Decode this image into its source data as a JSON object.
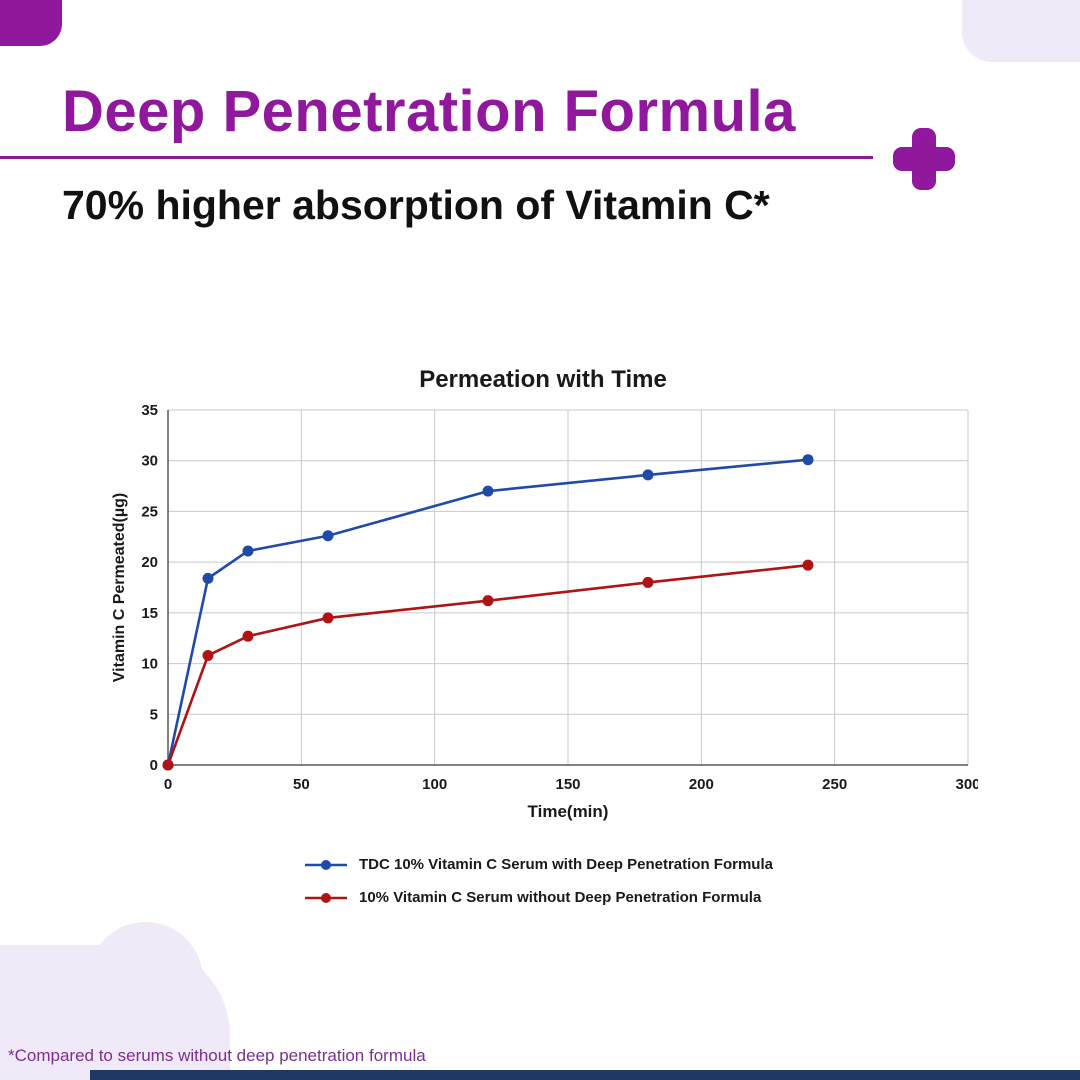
{
  "theme": {
    "purple": "#8F189C",
    "light_purple": "#F0E9F7",
    "navy_bar": "#1F3864",
    "footnote_color": "#7B2F92",
    "grid_color": "#C9C9C9",
    "axis_color": "#595959",
    "tick_color": "#1a1a1a"
  },
  "header": {
    "title": "Deep Penetration Formula",
    "subtitle": "70% higher absorption of Vitamin C*"
  },
  "footnote": "*Compared to serums without deep penetration formula",
  "chart_data": {
    "type": "line",
    "title": "Permeation with Time",
    "xlabel": "Time(min)",
    "ylabel": "Vitamin C Permeated(µg)",
    "xlim": [
      0,
      300
    ],
    "ylim": [
      0,
      35
    ],
    "xticks": [
      0,
      50,
      100,
      150,
      200,
      250,
      300
    ],
    "yticks": [
      0,
      5,
      10,
      15,
      20,
      25,
      30,
      35
    ],
    "grid": true,
    "legend_position": "bottom",
    "series": [
      {
        "name": "TDC 10% Vitamin C Serum with Deep Penetration Formula",
        "color": "#1F4AA8",
        "x": [
          0,
          15,
          30,
          60,
          120,
          180,
          240
        ],
        "y": [
          0,
          18.4,
          21.1,
          22.6,
          27.0,
          28.6,
          30.1
        ]
      },
      {
        "name": "10% Vitamin C Serum without Deep Penetration Formula",
        "color": "#B01313",
        "x": [
          0,
          15,
          30,
          60,
          120,
          180,
          240
        ],
        "y": [
          0,
          10.8,
          12.7,
          14.5,
          16.2,
          18.0,
          19.7
        ]
      }
    ]
  }
}
